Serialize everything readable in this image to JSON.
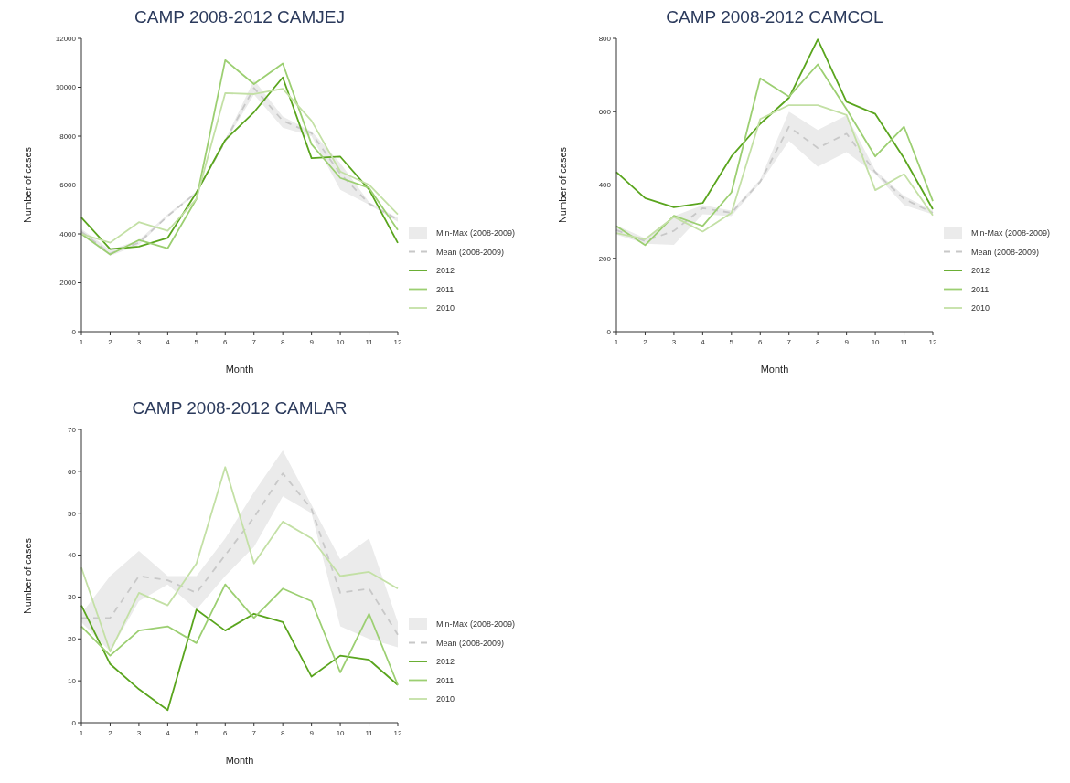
{
  "chart_data": [
    {
      "type": "line",
      "title": "CAMP 2008-2012 CAMJEJ",
      "xlabel": "Month",
      "ylabel": "Number of cases",
      "annotations": [
        "Min-Max (2008-2009)"
      ],
      "x": [
        1,
        2,
        3,
        4,
        5,
        6,
        7,
        8,
        9,
        10,
        11,
        12
      ],
      "xlim": [
        1,
        12
      ],
      "xticks": [
        1,
        2,
        3,
        4,
        5,
        6,
        7,
        8,
        9,
        10,
        11,
        12
      ],
      "ylim": [
        0,
        12000
      ],
      "yticks": [
        0,
        2000,
        4000,
        6000,
        8000,
        10000,
        12000
      ],
      "legend": "right",
      "series": [
        {
          "name": "Mean (2008-2009)",
          "color": "#c8c8c8",
          "line_style": "dashed",
          "values": [
            4090,
            3200,
            3640,
            4730,
            5690,
            7800,
            9970,
            8630,
            8120,
            6460,
            5240,
            4580
          ],
          "lower": [
            3950,
            3100,
            3550,
            4700,
            5650,
            7750,
            9700,
            8350,
            8000,
            5800,
            5200,
            4500
          ],
          "upper": [
            4200,
            3350,
            3750,
            4800,
            5750,
            7850,
            10300,
            8800,
            8200,
            6900,
            5300,
            4650
          ]
        },
        {
          "name": "2012",
          "color": "#5aa51e",
          "values": [
            4670,
            3380,
            3480,
            3840,
            5690,
            7840,
            8980,
            10400,
            7100,
            7160,
            5820,
            3630
          ]
        },
        {
          "name": "2011",
          "color": "#9ccf72",
          "values": [
            4000,
            3160,
            3750,
            3410,
            5430,
            11110,
            10130,
            10970,
            7670,
            6290,
            5880,
            4160
          ]
        },
        {
          "name": "2010",
          "color": "#c3e0a5",
          "values": [
            4000,
            3640,
            4480,
            4130,
            5430,
            9760,
            9720,
            9940,
            8630,
            6550,
            6010,
            4800
          ]
        }
      ]
    },
    {
      "type": "line",
      "title": "CAMP 2008-2012 CAMCOL",
      "xlabel": "Month",
      "ylabel": "Number of cases",
      "annotations": [
        "Min-Max (2008-2009)"
      ],
      "x": [
        1,
        2,
        3,
        4,
        5,
        6,
        7,
        8,
        9,
        10,
        11,
        12
      ],
      "xlim": [
        1,
        12
      ],
      "xticks": [
        1,
        2,
        3,
        4,
        5,
        6,
        7,
        8,
        9,
        10,
        11,
        12
      ],
      "ylim": [
        0,
        800
      ],
      "yticks": [
        0,
        200,
        400,
        600,
        800
      ],
      "legend": "right",
      "series": [
        {
          "name": "Mean (2008-2009)",
          "color": "#c8c8c8",
          "line_style": "dashed",
          "values": [
            277,
            247,
            275,
            337,
            324,
            409,
            559,
            501,
            540,
            435,
            362,
            324
          ],
          "lower": [
            265,
            240,
            237,
            320,
            315,
            405,
            520,
            450,
            490,
            430,
            345,
            320
          ],
          "upper": [
            290,
            255,
            315,
            345,
            330,
            415,
            600,
            550,
            590,
            440,
            370,
            330
          ]
        },
        {
          "name": "2012",
          "color": "#5aa51e",
          "values": [
            435,
            364,
            339,
            351,
            478,
            567,
            638,
            797,
            627,
            594,
            473,
            334
          ]
        },
        {
          "name": "2011",
          "color": "#9ccf72",
          "values": [
            288,
            236,
            316,
            288,
            380,
            691,
            641,
            729,
            607,
            478,
            559,
            356
          ]
        },
        {
          "name": "2010",
          "color": "#c3e0a5",
          "values": [
            269,
            252,
            313,
            273,
            324,
            580,
            618,
            618,
            591,
            386,
            430,
            317
          ]
        }
      ]
    },
    {
      "type": "line",
      "title": "CAMP 2008-2012 CAMLAR",
      "xlabel": "Month",
      "ylabel": "Number of cases",
      "annotations": [
        "Min-Max (2008-2009)"
      ],
      "x": [
        1,
        2,
        3,
        4,
        5,
        6,
        7,
        8,
        9,
        10,
        11,
        12
      ],
      "xlim": [
        1,
        12
      ],
      "xticks": [
        1,
        2,
        3,
        4,
        5,
        6,
        7,
        8,
        9,
        10,
        11,
        12
      ],
      "ylim": [
        0,
        70
      ],
      "yticks": [
        0,
        10,
        20,
        30,
        40,
        50,
        60,
        70
      ],
      "legend": "right",
      "series": [
        {
          "name": "Mean (2008-2009)",
          "color": "#c8c8c8",
          "line_style": "dashed",
          "values": [
            25,
            25,
            35,
            34,
            31,
            40,
            49,
            59.5,
            51,
            31,
            32,
            21
          ],
          "lower": [
            24,
            17,
            29,
            33,
            27,
            35,
            42,
            54,
            50,
            23,
            20,
            18
          ],
          "upper": [
            26,
            35,
            41,
            35,
            35,
            44,
            55,
            65,
            52,
            39,
            44,
            24
          ]
        },
        {
          "name": "2012",
          "color": "#5aa51e",
          "values": [
            28,
            14,
            8,
            3,
            27,
            22,
            26,
            24,
            11,
            16,
            15,
            9
          ]
        },
        {
          "name": "2011",
          "color": "#9ccf72",
          "values": [
            23,
            16,
            22,
            23,
            19,
            33,
            25,
            32,
            29,
            12,
            26,
            9
          ]
        },
        {
          "name": "2010",
          "color": "#c3e0a5",
          "values": [
            37,
            17,
            31,
            28,
            38,
            61,
            38,
            48,
            44,
            35,
            36,
            32
          ]
        }
      ]
    }
  ]
}
